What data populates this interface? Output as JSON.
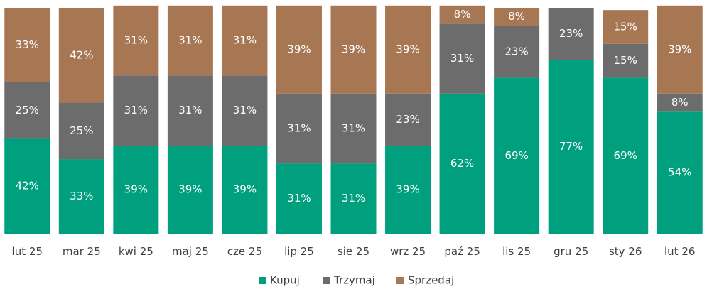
{
  "chart_data": {
    "type": "bar",
    "stacked": true,
    "categories": [
      "lut 25",
      "mar 25",
      "kwi 25",
      "maj 25",
      "cze 25",
      "lip 25",
      "sie 25",
      "wrz 25",
      "paź 25",
      "lis 25",
      "gru 25",
      "sty 26",
      "lut 26"
    ],
    "series": [
      {
        "name": "Kupuj",
        "color": "#00A07E",
        "values": [
          42,
          33,
          39,
          39,
          39,
          31,
          31,
          39,
          62,
          69,
          77,
          69,
          54
        ],
        "labels": [
          "42%",
          "33%",
          "39%",
          "39%",
          "39%",
          "31%",
          "31%",
          "39%",
          "62%",
          "69%",
          "77%",
          "69%",
          "54%"
        ]
      },
      {
        "name": "Trzymaj",
        "color": "#6C6C6C",
        "values": [
          25,
          25,
          31,
          31,
          31,
          31,
          31,
          23,
          31,
          23,
          23,
          15,
          8
        ],
        "labels": [
          "25%",
          "25%",
          "31%",
          "31%",
          "31%",
          "31%",
          "31%",
          "23%",
          "31%",
          "23%",
          "23%",
          "15%",
          "8%"
        ]
      },
      {
        "name": "Sprzedaj",
        "color": "#A77754",
        "values": [
          33,
          42,
          31,
          31,
          31,
          39,
          39,
          39,
          8,
          8,
          0,
          15,
          39
        ],
        "labels": [
          "33%",
          "42%",
          "31%",
          "31%",
          "31%",
          "39%",
          "39%",
          "39%",
          "8%",
          "8%",
          "",
          "15%",
          "39%"
        ]
      }
    ],
    "ylim": [
      0,
      100
    ],
    "ylabel": "",
    "xlabel": "",
    "title": "",
    "legend_position": "bottom-center",
    "axis_color": "#D9D9D9"
  }
}
